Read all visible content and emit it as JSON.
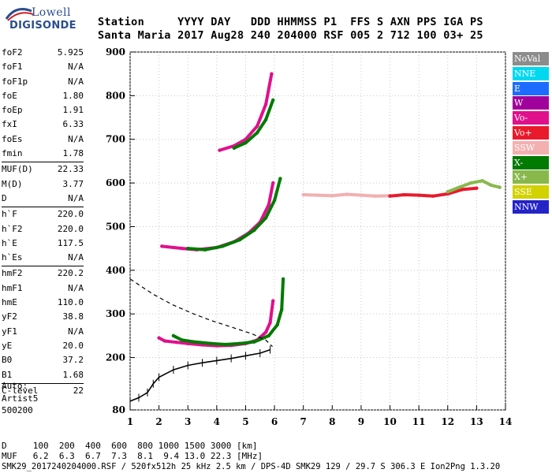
{
  "logo": {
    "line1": "Lowell",
    "line2": "DIGISONDE"
  },
  "header": {
    "line1": "Station     YYYY DAY   DDD HHMMSS P1  FFS S AXN PPS IGA PS",
    "line2": "Santa Maria 2017 Aug28 240 204000 RSF 005 2 712 100 03+ 25"
  },
  "params": {
    "group1": [
      {
        "name": "foF2",
        "value": "5.925"
      },
      {
        "name": "foF1",
        "value": "N/A"
      },
      {
        "name": "foF1p",
        "value": "N/A"
      },
      {
        "name": "foE",
        "value": "1.80"
      },
      {
        "name": "foEp",
        "value": "1.91"
      },
      {
        "name": "fxI",
        "value": "6.33"
      },
      {
        "name": "foEs",
        "value": "N/A"
      },
      {
        "name": "fmin",
        "value": "1.78"
      }
    ],
    "group2": [
      {
        "name": "MUF(D)",
        "value": "22.33"
      },
      {
        "name": "M(D)",
        "value": "3.77"
      },
      {
        "name": "D",
        "value": "N/A"
      }
    ],
    "group3": [
      {
        "name": "h`F",
        "value": "220.0"
      },
      {
        "name": "h`F2",
        "value": "220.0"
      },
      {
        "name": "h`E",
        "value": "117.5"
      },
      {
        "name": "h`Es",
        "value": "N/A"
      }
    ],
    "group4": [
      {
        "name": "hmF2",
        "value": "220.2"
      },
      {
        "name": "hmF1",
        "value": "N/A"
      },
      {
        "name": "hmE",
        "value": "110.0"
      },
      {
        "name": "yF2",
        "value": "38.8"
      },
      {
        "name": "yF1",
        "value": "N/A"
      },
      {
        "name": "yE",
        "value": "20.0"
      },
      {
        "name": "B0",
        "value": "37.2"
      },
      {
        "name": "B1",
        "value": "1.68"
      }
    ],
    "group5": [
      {
        "name": "C-level",
        "value": "22"
      }
    ]
  },
  "auto": {
    "line1": "Auto:",
    "line2": "Artist5",
    "line3": "500200"
  },
  "dmuf": {
    "d_line": "D     100  200  400  600  800 1000 1500 3000 [km]",
    "muf_line": "MUF   6.2  6.3  6.7  7.3  8.1  9.4 13.0 22.3 [MHz]"
  },
  "footer": "SMK29_2017240204000.RSF / 520fx512h 25 kHz 2.5 km / DPS-4D SMK29 129 / 29.7 S 306.3 E Ion2Png 1.3.20",
  "legend": [
    {
      "label": "NoVal",
      "color": "#8c8c8c"
    },
    {
      "label": "NNE",
      "color": "#00d8f0"
    },
    {
      "label": "E",
      "color": "#1e6cff"
    },
    {
      "label": "W",
      "color": "#a0009c"
    },
    {
      "label": "Vo-",
      "color": "#e0108c"
    },
    {
      "label": "Vo+",
      "color": "#e81a2c"
    },
    {
      "label": "SSW",
      "color": "#f2b0b0"
    },
    {
      "label": "X-",
      "color": "#007a00"
    },
    {
      "label": "X+",
      "color": "#88b84c"
    },
    {
      "label": "SSE",
      "color": "#d2d200"
    },
    {
      "label": "NNW",
      "color": "#2424c8"
    }
  ],
  "chart_data": {
    "type": "scatter",
    "xlim": [
      1,
      14
    ],
    "ylim": [
      80,
      900
    ],
    "x_ticks": [
      1,
      2,
      3,
      4,
      5,
      6,
      7,
      8,
      9,
      10,
      11,
      12,
      13,
      14
    ],
    "y_ticks": [
      80,
      200,
      300,
      400,
      500,
      600,
      700,
      800,
      900
    ],
    "series": [
      {
        "name": "Vo-",
        "color": "#e0108c",
        "points": [
          [
            2.0,
            245
          ],
          [
            2.2,
            238
          ],
          [
            2.6,
            235
          ],
          [
            3.0,
            232
          ],
          [
            3.5,
            229
          ],
          [
            4.0,
            227
          ],
          [
            4.5,
            228
          ],
          [
            5.0,
            232
          ],
          [
            5.4,
            240
          ],
          [
            5.7,
            258
          ],
          [
            5.85,
            280
          ],
          [
            5.95,
            330
          ]
        ]
      },
      {
        "name": "X-",
        "color": "#007a00",
        "points": [
          [
            2.5,
            250
          ],
          [
            2.8,
            240
          ],
          [
            3.2,
            236
          ],
          [
            3.8,
            232
          ],
          [
            4.3,
            230
          ],
          [
            4.8,
            232
          ],
          [
            5.3,
            236
          ],
          [
            5.8,
            250
          ],
          [
            6.1,
            275
          ],
          [
            6.25,
            310
          ],
          [
            6.3,
            380
          ]
        ]
      },
      {
        "name": "Vo- F 2-hop",
        "color": "#e0108c",
        "points": [
          [
            2.1,
            455
          ],
          [
            2.8,
            450
          ],
          [
            3.3,
            447
          ],
          [
            4.0,
            452
          ],
          [
            4.6,
            465
          ],
          [
            5.1,
            485
          ],
          [
            5.5,
            510
          ],
          [
            5.8,
            550
          ],
          [
            5.95,
            600
          ]
        ]
      },
      {
        "name": "X- F 2-hop",
        "color": "#007a00",
        "points": [
          [
            3.0,
            450
          ],
          [
            3.6,
            447
          ],
          [
            4.2,
            455
          ],
          [
            4.8,
            470
          ],
          [
            5.3,
            492
          ],
          [
            5.7,
            520
          ],
          [
            6.0,
            560
          ],
          [
            6.2,
            610
          ]
        ]
      },
      {
        "name": "Vo- F 3-hop",
        "color": "#e0108c",
        "points": [
          [
            4.1,
            675
          ],
          [
            4.6,
            685
          ],
          [
            5.0,
            700
          ],
          [
            5.4,
            730
          ],
          [
            5.7,
            780
          ],
          [
            5.9,
            850
          ]
        ]
      },
      {
        "name": "X- F 3-hop",
        "color": "#007a00",
        "points": [
          [
            4.6,
            680
          ],
          [
            5.0,
            692
          ],
          [
            5.4,
            715
          ],
          [
            5.7,
            745
          ],
          [
            5.95,
            790
          ]
        ]
      },
      {
        "name": "SSW",
        "color": "#f2b0b0",
        "points": [
          [
            7.0,
            573
          ],
          [
            7.5,
            572
          ],
          [
            8.0,
            571
          ],
          [
            8.5,
            574
          ],
          [
            9.0,
            572
          ],
          [
            9.5,
            570
          ],
          [
            10.0,
            571
          ]
        ]
      },
      {
        "name": "Vo+",
        "color": "#e81a2c",
        "points": [
          [
            10.0,
            570
          ],
          [
            10.5,
            573
          ],
          [
            11.0,
            572
          ],
          [
            11.5,
            570
          ],
          [
            12.0,
            575
          ],
          [
            12.5,
            585
          ],
          [
            13.0,
            588
          ]
        ]
      },
      {
        "name": "X+",
        "color": "#88b84c",
        "points": [
          [
            12.0,
            580
          ],
          [
            12.4,
            590
          ],
          [
            12.8,
            600
          ],
          [
            13.2,
            605
          ],
          [
            13.5,
            595
          ],
          [
            13.8,
            590
          ]
        ]
      }
    ],
    "profile": [
      [
        1.0,
        100
      ],
      [
        1.3,
        108
      ],
      [
        1.6,
        120
      ],
      [
        1.8,
        140
      ],
      [
        2.0,
        155
      ],
      [
        2.5,
        172
      ],
      [
        3.0,
        182
      ],
      [
        3.5,
        188
      ],
      [
        4.0,
        193
      ],
      [
        4.5,
        198
      ],
      [
        5.0,
        204
      ],
      [
        5.5,
        210
      ],
      [
        5.85,
        218
      ]
    ],
    "profile_extension": [
      [
        1.0,
        380
      ],
      [
        1.8,
        345
      ],
      [
        2.5,
        320
      ],
      [
        3.2,
        300
      ],
      [
        3.8,
        285
      ],
      [
        4.5,
        270
      ],
      [
        5.2,
        255
      ],
      [
        5.7,
        240
      ],
      [
        5.93,
        225
      ]
    ]
  }
}
